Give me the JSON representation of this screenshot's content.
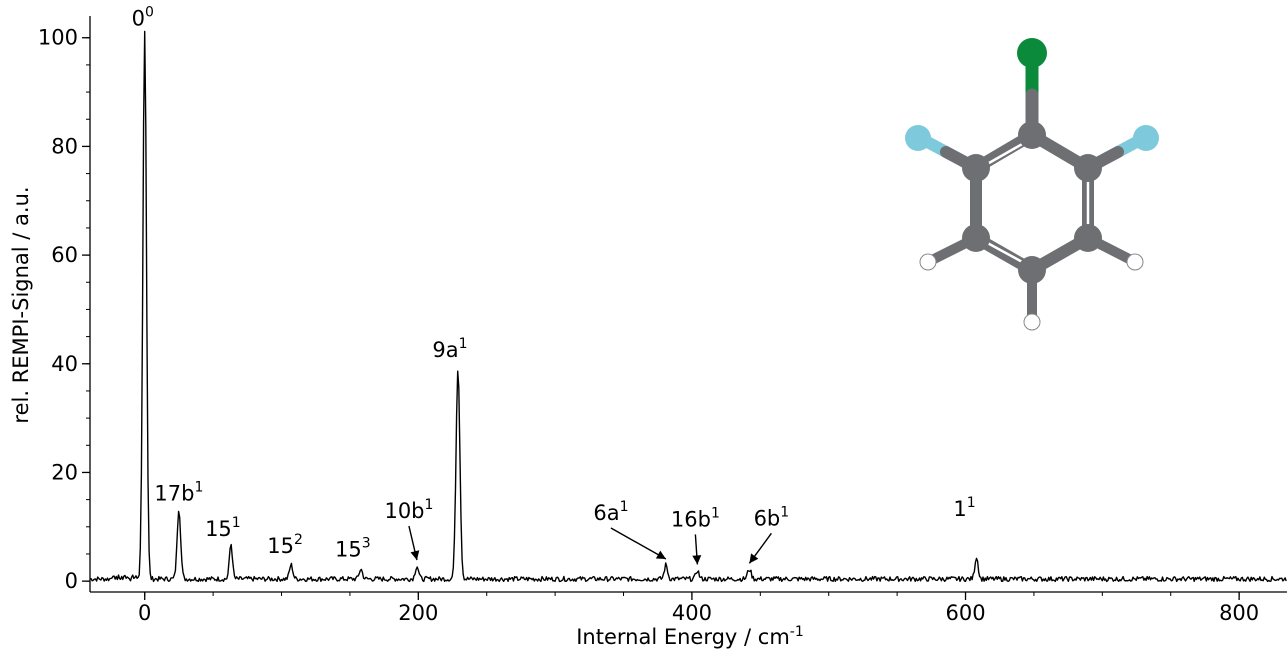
{
  "chart_data": {
    "type": "line",
    "title": "",
    "xlabel": "Internal Energy / cm",
    "xlabel_sup": "-1",
    "ylabel": "rel. REMPI-Signal / a.u.",
    "xlim": [
      -40,
      835
    ],
    "ylim": [
      -2,
      104
    ],
    "xticks": [
      0,
      200,
      400,
      600,
      800
    ],
    "yticks": [
      0,
      20,
      40,
      60,
      80,
      100
    ],
    "x_minor_step": 50,
    "y_minor_step": 5,
    "grid": false,
    "legend": "none",
    "line_color": "#000000",
    "baseline": 0.4,
    "peaks": [
      {
        "x": 0,
        "y": 101,
        "w": 1.3
      },
      {
        "x": 25,
        "y": 13,
        "w": 1.3
      },
      {
        "x": 63,
        "y": 6.5,
        "w": 1.1
      },
      {
        "x": 107,
        "y": 2.6,
        "w": 1.2
      },
      {
        "x": 158,
        "y": 1.8,
        "w": 1.2
      },
      {
        "x": 199,
        "y": 2.4,
        "w": 1.2
      },
      {
        "x": 229,
        "y": 39,
        "w": 1.4
      },
      {
        "x": 381,
        "y": 2.6,
        "w": 1.2
      },
      {
        "x": 404,
        "y": 1.6,
        "w": 1.1
      },
      {
        "x": 442,
        "y": 1.8,
        "w": 1.3
      },
      {
        "x": 608,
        "y": 4.1,
        "w": 1.2
      }
    ],
    "annotations": [
      {
        "id": "0-0",
        "base": "0",
        "sup": "0",
        "x": 0,
        "y": 101,
        "arrow": false
      },
      {
        "id": "17b-1",
        "base": "17b",
        "sup": "1",
        "x": 25,
        "y": 13,
        "arrow": false
      },
      {
        "id": "15-1",
        "base": "15",
        "sup": "1",
        "x": 63,
        "y": 6.5,
        "arrow": false
      },
      {
        "id": "15-2",
        "base": "15",
        "sup": "2",
        "x": 107,
        "y": 2.6,
        "arrow": false
      },
      {
        "id": "15-3",
        "base": "15",
        "sup": "3",
        "x": 158,
        "y": 1.8,
        "arrow": false
      },
      {
        "id": "10b-1",
        "base": "10b",
        "sup": "1",
        "x": 199,
        "y": 2.4,
        "arrow": true
      },
      {
        "id": "9a-1",
        "base": "9a",
        "sup": "1",
        "x": 229,
        "y": 39,
        "arrow": false
      },
      {
        "id": "6a-1",
        "base": "6a",
        "sup": "1",
        "x": 381,
        "y": 2.6,
        "arrow": true
      },
      {
        "id": "16b-1",
        "base": "16b",
        "sup": "1",
        "x": 404,
        "y": 1.6,
        "arrow": true
      },
      {
        "id": "6b-1",
        "base": "6b",
        "sup": "1",
        "x": 442,
        "y": 1.8,
        "arrow": true
      },
      {
        "id": "1-1",
        "base": "1",
        "sup": "1",
        "x": 608,
        "y": 4.1,
        "arrow": false
      }
    ]
  },
  "molecule": {
    "description_atoms": [
      "Cl",
      "F",
      "F",
      "C",
      "H"
    ],
    "colors": {
      "carbon": "#6e6f73",
      "chlorine": "#0a8a3a",
      "fluorine": "#7fc9dc",
      "hydrogen": "#ffffff"
    }
  }
}
